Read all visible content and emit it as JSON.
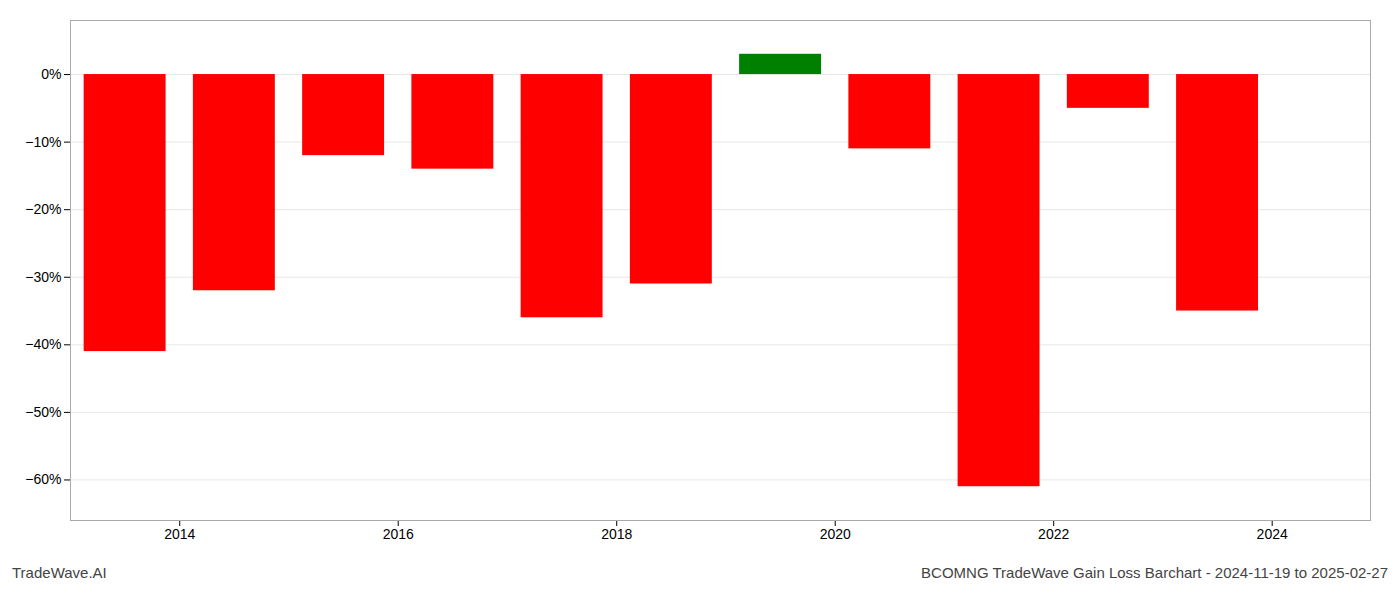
{
  "chart_data": {
    "type": "bar",
    "title": "BCOMNG TradeWave Gain Loss Barchart - 2024-11-19 to 2025-02-27",
    "annotations": [
      "TradeWave.AI"
    ],
    "x": [
      2013.5,
      2014.5,
      2015.5,
      2016.5,
      2017.5,
      2018.5,
      2019.5,
      2020.5,
      2021.5,
      2022.5,
      2023.5
    ],
    "values": [
      -41.0,
      -32.0,
      -12.0,
      -14.0,
      -36.0,
      -31.0,
      3.0,
      -11.0,
      -61.0,
      -5.0,
      -35.0
    ],
    "colors": [
      "#ff0000",
      "#ff0000",
      "#ff0000",
      "#ff0000",
      "#ff0000",
      "#ff0000",
      "#008000",
      "#ff0000",
      "#ff0000",
      "#ff0000",
      "#ff0000"
    ],
    "xlim": [
      2013.0,
      2024.9
    ],
    "xticks": [
      2014,
      2016,
      2018,
      2020,
      2022,
      2024
    ],
    "ylim": [
      -66,
      8
    ],
    "yticks": [
      {
        "value": 0,
        "label": "0%"
      },
      {
        "value": -10,
        "label": "−10%"
      },
      {
        "value": -20,
        "label": "−20%"
      },
      {
        "value": -30,
        "label": "−30%"
      },
      {
        "value": -40,
        "label": "−40%"
      },
      {
        "value": -50,
        "label": "−50%"
      },
      {
        "value": -60,
        "label": "−60%"
      }
    ],
    "grid": true
  }
}
